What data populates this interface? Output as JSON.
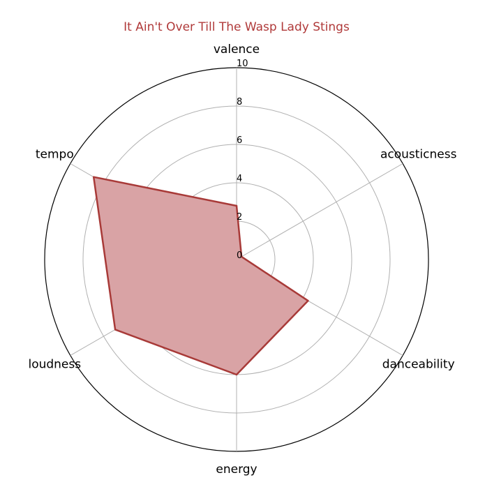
{
  "chart_data": {
    "type": "radar",
    "title": "It Ain't Over Till The Wasp Lady Stings",
    "axes": [
      "valence",
      "acousticness",
      "danceability",
      "energy",
      "loudness",
      "tempo"
    ],
    "values": [
      2.8,
      0.3,
      4.3,
      6.0,
      7.3,
      8.6
    ],
    "rlim": [
      0,
      10
    ],
    "rticks": [
      0,
      2,
      4,
      6,
      8,
      10
    ],
    "grid": true,
    "colors": {
      "line": "#a83a38",
      "fill": "#d9a3a5"
    }
  }
}
